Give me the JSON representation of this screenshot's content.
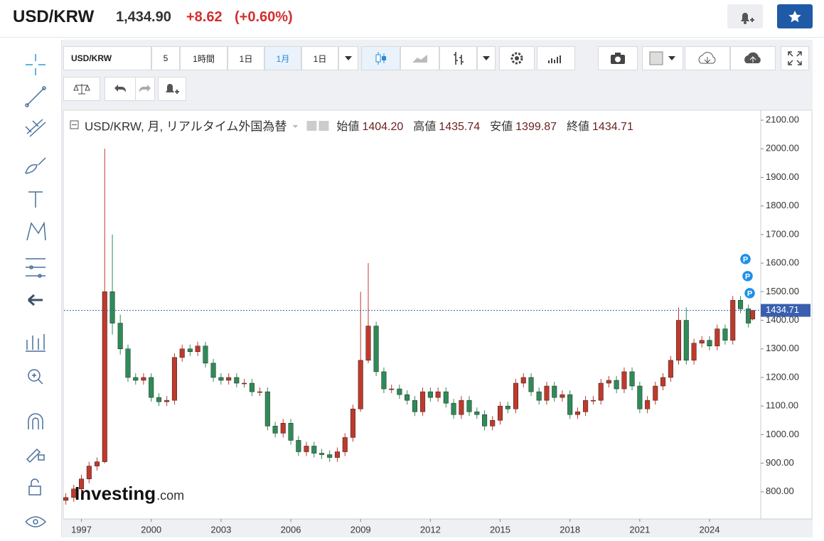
{
  "header": {
    "symbol": "USD/KRW",
    "price": "1,434.90",
    "change": "+8.62",
    "change_pct": "(+0.60%)"
  },
  "toolbar": {
    "symbol": "USD/KRW",
    "buttons": [
      "5",
      "1時間",
      "1日",
      "1月",
      "1日"
    ]
  },
  "chart_data": {
    "type": "candlestick",
    "title": "USD/KRW, 月, リアルタイム外国為替",
    "ohlc_legend": [
      {
        "label": "始値",
        "value": "1404.20"
      },
      {
        "label": "高値",
        "value": "1435.74"
      },
      {
        "label": "安値",
        "value": "1399.87"
      },
      {
        "label": "終値",
        "value": "1434.71"
      }
    ],
    "watermark": {
      "brand": "Investing",
      "suffix": ".com"
    },
    "markers": [
      "P",
      "P",
      "P"
    ],
    "up_color": "#c0392b",
    "down_color": "#2e8b57",
    "price_line_color": "#3a5fb0",
    "x": [
      1996.33,
      1996.67,
      1997,
      1997.33,
      1997.67,
      1998,
      1998.33,
      1998.67,
      1999,
      1999.33,
      1999.67,
      2000,
      2000.33,
      2000.67,
      2001,
      2001.33,
      2001.67,
      2002,
      2002.33,
      2002.67,
      2003,
      2003.33,
      2003.67,
      2004,
      2004.33,
      2004.67,
      2005,
      2005.33,
      2005.67,
      2006,
      2006.33,
      2006.67,
      2007,
      2007.33,
      2007.67,
      2008,
      2008.33,
      2008.67,
      2009,
      2009.33,
      2009.67,
      2010,
      2010.33,
      2010.67,
      2011,
      2011.33,
      2011.67,
      2012,
      2012.33,
      2012.67,
      2013,
      2013.33,
      2013.67,
      2014,
      2014.33,
      2014.67,
      2015,
      2015.33,
      2015.67,
      2016,
      2016.33,
      2016.67,
      2017,
      2017.33,
      2017.67,
      2018,
      2018.33,
      2018.67,
      2019,
      2019.33,
      2019.67,
      2020,
      2020.33,
      2020.67,
      2021,
      2021.33,
      2021.67,
      2022,
      2022.33,
      2022.67,
      2023,
      2023.33,
      2023.67,
      2024,
      2024.33,
      2024.67,
      2025,
      2025.33,
      2025.67,
      2025.85
    ],
    "open": [
      770,
      780,
      810,
      845,
      890,
      905,
      1500,
      1390,
      1300,
      1200,
      1190,
      1200,
      1130,
      1115,
      1120,
      1270,
      1300,
      1290,
      1310,
      1250,
      1200,
      1190,
      1200,
      1180,
      1180,
      1150,
      1150,
      1030,
      1005,
      1040,
      980,
      940,
      960,
      935,
      930,
      920,
      940,
      990,
      1090,
      1260,
      1380,
      1220,
      1160,
      1160,
      1140,
      1120,
      1080,
      1150,
      1130,
      1150,
      1110,
      1070,
      1120,
      1080,
      1070,
      1030,
      1050,
      1100,
      1090,
      1180,
      1200,
      1150,
      1120,
      1170,
      1130,
      1140,
      1070,
      1080,
      1120,
      1120,
      1180,
      1190,
      1160,
      1220,
      1170,
      1090,
      1120,
      1170,
      1200,
      1260,
      1400,
      1260,
      1320,
      1330,
      1310,
      1370,
      1330,
      1470,
      1440,
      1404.2
    ],
    "high": [
      795,
      825,
      860,
      905,
      920,
      2000,
      1700,
      1420,
      1315,
      1215,
      1215,
      1215,
      1145,
      1135,
      1285,
      1315,
      1315,
      1325,
      1325,
      1265,
      1215,
      1215,
      1215,
      1195,
      1195,
      1165,
      1165,
      1045,
      1055,
      1055,
      995,
      975,
      975,
      950,
      945,
      955,
      1005,
      1105,
      1500,
      1600,
      1395,
      1235,
      1175,
      1175,
      1155,
      1135,
      1165,
      1165,
      1165,
      1165,
      1125,
      1135,
      1135,
      1095,
      1085,
      1065,
      1115,
      1115,
      1195,
      1215,
      1215,
      1165,
      1185,
      1185,
      1155,
      1155,
      1095,
      1135,
      1135,
      1195,
      1205,
      1205,
      1235,
      1235,
      1185,
      1135,
      1185,
      1215,
      1275,
      1445,
      1445,
      1335,
      1345,
      1345,
      1385,
      1385,
      1485,
      1485,
      1455,
      1435.74
    ],
    "low": [
      755,
      765,
      795,
      830,
      875,
      900,
      1350,
      1280,
      1185,
      1175,
      1175,
      1115,
      1100,
      1100,
      1105,
      1255,
      1275,
      1275,
      1235,
      1185,
      1175,
      1175,
      1165,
      1165,
      1135,
      1135,
      1015,
      990,
      990,
      965,
      925,
      925,
      920,
      915,
      905,
      905,
      925,
      975,
      1080,
      1250,
      1205,
      1145,
      1145,
      1125,
      1105,
      1065,
      1065,
      1115,
      1115,
      1095,
      1055,
      1055,
      1065,
      1055,
      1015,
      1015,
      1035,
      1075,
      1075,
      1165,
      1135,
      1105,
      1105,
      1115,
      1115,
      1055,
      1055,
      1065,
      1105,
      1105,
      1165,
      1145,
      1145,
      1155,
      1075,
      1075,
      1105,
      1155,
      1185,
      1245,
      1245,
      1245,
      1305,
      1295,
      1295,
      1315,
      1315,
      1425,
      1375,
      1399.87
    ],
    "close": [
      780,
      810,
      845,
      890,
      905,
      1500,
      1390,
      1300,
      1200,
      1190,
      1200,
      1130,
      1115,
      1120,
      1270,
      1300,
      1290,
      1310,
      1250,
      1200,
      1190,
      1200,
      1180,
      1180,
      1150,
      1150,
      1030,
      1005,
      1040,
      980,
      940,
      960,
      935,
      930,
      920,
      940,
      990,
      1090,
      1260,
      1380,
      1220,
      1160,
      1160,
      1140,
      1120,
      1080,
      1150,
      1130,
      1150,
      1110,
      1070,
      1120,
      1080,
      1070,
      1030,
      1050,
      1100,
      1090,
      1180,
      1200,
      1150,
      1120,
      1170,
      1130,
      1140,
      1070,
      1080,
      1120,
      1120,
      1180,
      1190,
      1160,
      1220,
      1170,
      1090,
      1120,
      1170,
      1200,
      1260,
      1400,
      1260,
      1320,
      1330,
      1310,
      1370,
      1330,
      1470,
      1440,
      1390,
      1434.71
    ],
    "xlim": [
      1996.25,
      2026.2
    ],
    "xticks": [
      1997,
      2000,
      2003,
      2006,
      2009,
      2012,
      2015,
      2018,
      2021,
      2024
    ],
    "ylim": [
      705,
      2135
    ],
    "yticks": [
      {
        "value": 800,
        "label": "800.00"
      },
      {
        "value": 900,
        "label": "900.00"
      },
      {
        "value": 1000,
        "label": "1000.00"
      },
      {
        "value": 1100,
        "label": "1100.00"
      },
      {
        "value": 1200,
        "label": "1200.00"
      },
      {
        "value": 1300,
        "label": "1300.00"
      },
      {
        "value": 1400,
        "label": "1400.00"
      },
      {
        "value": 1500,
        "label": "1500.00"
      },
      {
        "value": 1600,
        "label": "1600.00"
      },
      {
        "value": 1700,
        "label": "1700.00"
      },
      {
        "value": 1800,
        "label": "1800.00"
      },
      {
        "value": 1900,
        "label": "1900.00"
      },
      {
        "value": 2000,
        "label": "2000.00"
      },
      {
        "value": 2100,
        "label": "2100.00"
      }
    ],
    "grid": false
  }
}
